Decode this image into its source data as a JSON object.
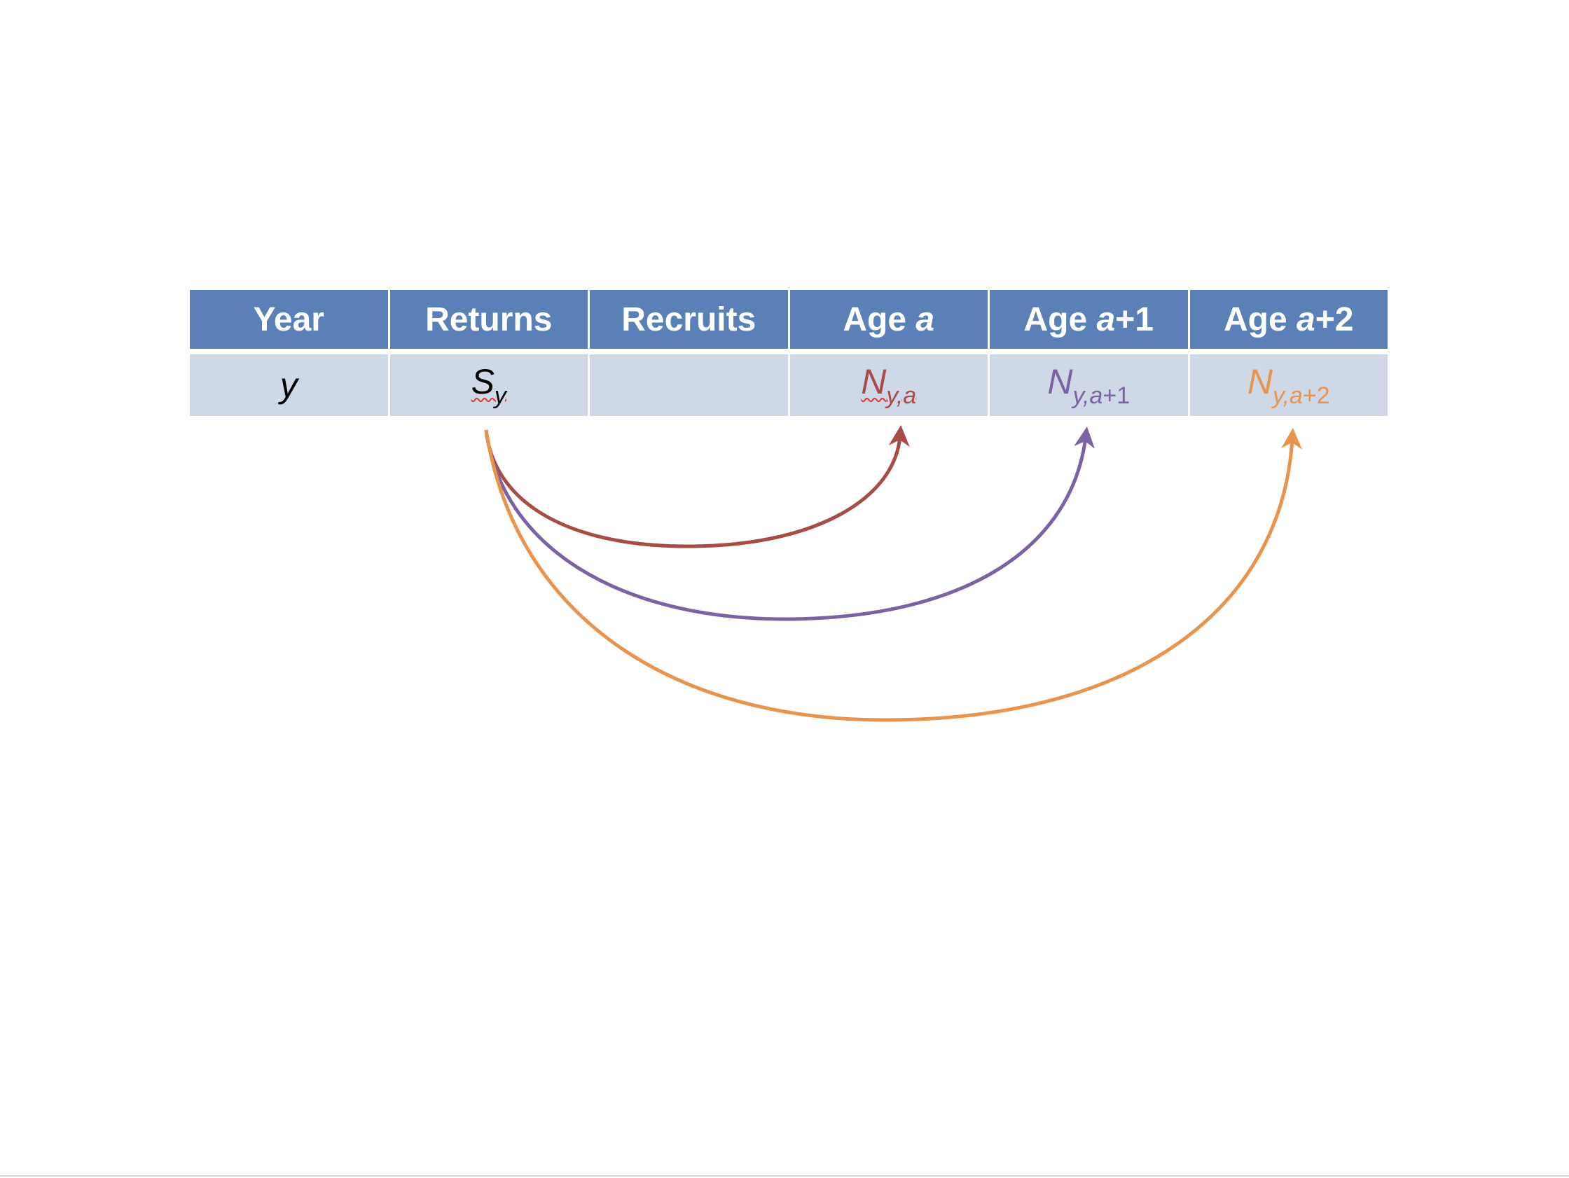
{
  "colors": {
    "header_bg": "#5b80b8",
    "row_bg": "#cfd8e6",
    "age_a": "#a84c47",
    "age_a1": "#7b62a3",
    "age_a2": "#e8944f",
    "text": "#000000"
  },
  "table": {
    "headers": {
      "year": "Year",
      "returns": "Returns",
      "recruits": "Recruits",
      "age_a_prefix": "Age ",
      "age_a_var": "a",
      "age_a1_prefix": "Age ",
      "age_a1_var": "a",
      "age_a1_suffix": "+1",
      "age_a2_prefix": "Age ",
      "age_a2_var": "a",
      "age_a2_suffix": "+2"
    },
    "row": {
      "year": "y",
      "returns_base": "S",
      "returns_sub": "y",
      "recruits": "",
      "age_a_base": "N",
      "age_a_sub": "y,a",
      "age_a1_base": "N",
      "age_a1_sub_var": "y,a",
      "age_a1_sub_suffix": "+1",
      "age_a2_base": "N",
      "age_a2_sub_var": "y,a",
      "age_a2_sub_suffix": "+2"
    }
  },
  "arrows": [
    {
      "from": "returns",
      "to": "age_a",
      "color": "#a84c47"
    },
    {
      "from": "returns",
      "to": "age_a1",
      "color": "#7b62a3"
    },
    {
      "from": "returns",
      "to": "age_a2",
      "color": "#e8944f"
    }
  ]
}
